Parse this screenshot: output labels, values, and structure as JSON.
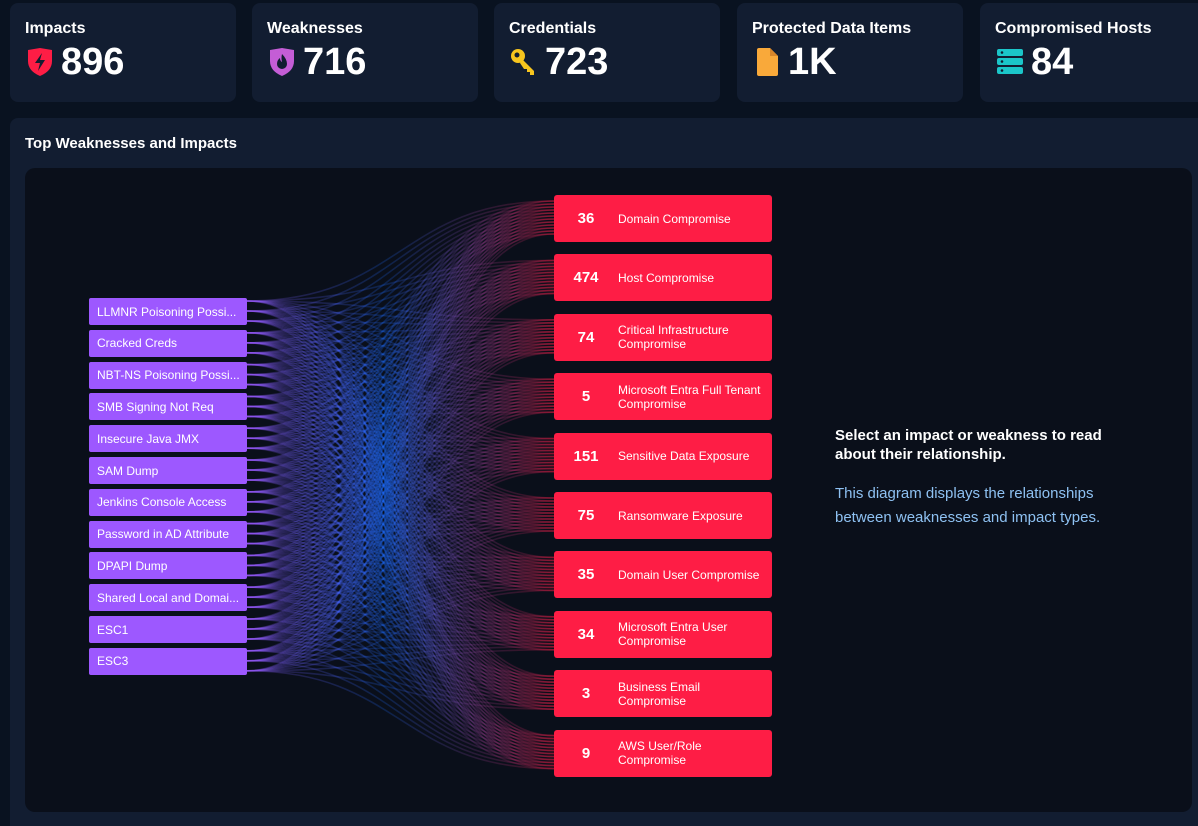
{
  "stats": [
    {
      "title": "Impacts",
      "value": "896",
      "icon": "shield-bolt-icon",
      "color": "#fe1d45"
    },
    {
      "title": "Weaknesses",
      "value": "716",
      "icon": "shield-flame-icon",
      "color": "#c45dd6"
    },
    {
      "title": "Credentials",
      "value": "723",
      "icon": "key-icon",
      "color": "#f7c51e"
    },
    {
      "title": "Protected Data Items",
      "value": "1K",
      "icon": "document-icon",
      "color": "#f9a93a"
    },
    {
      "title": "Compromised Hosts",
      "value": "84",
      "icon": "server-icon",
      "color": "#1bc6c9"
    }
  ],
  "panel": {
    "title": "Top Weaknesses and Impacts",
    "info_heading": "Select an impact or weakness to read about their relationship.",
    "info_body": "This diagram displays the relationships between weaknesses and impact types."
  },
  "chart_data": {
    "type": "sankey",
    "sources": [
      "LLMNR Poisoning Possi...",
      "Cracked Creds",
      "NBT-NS Poisoning Possi...",
      "SMB Signing Not Req",
      "Insecure Java JMX",
      "SAM Dump",
      "Jenkins Console Access",
      "Password in AD Attribute",
      "DPAPI Dump",
      "Shared Local and Domai...",
      "ESC1",
      "ESC3"
    ],
    "targets": [
      {
        "count": "36",
        "label": "Domain Compromise"
      },
      {
        "count": "474",
        "label": "Host Compromise"
      },
      {
        "count": "74",
        "label": "Critical Infrastructure Compromise"
      },
      {
        "count": "5",
        "label": "Microsoft Entra Full Tenant Compromise"
      },
      {
        "count": "151",
        "label": "Sensitive Data Exposure"
      },
      {
        "count": "75",
        "label": "Ransomware Exposure"
      },
      {
        "count": "35",
        "label": "Domain User Compromise"
      },
      {
        "count": "34",
        "label": "Microsoft Entra User Compromise"
      },
      {
        "count": "3",
        "label": "Business Email Compromise"
      },
      {
        "count": "9",
        "label": "AWS User/Role Compromise"
      }
    ],
    "colors": {
      "source": "#9d58ff",
      "target": "#fe1d45",
      "flow_mid": "#1a6bff"
    }
  }
}
